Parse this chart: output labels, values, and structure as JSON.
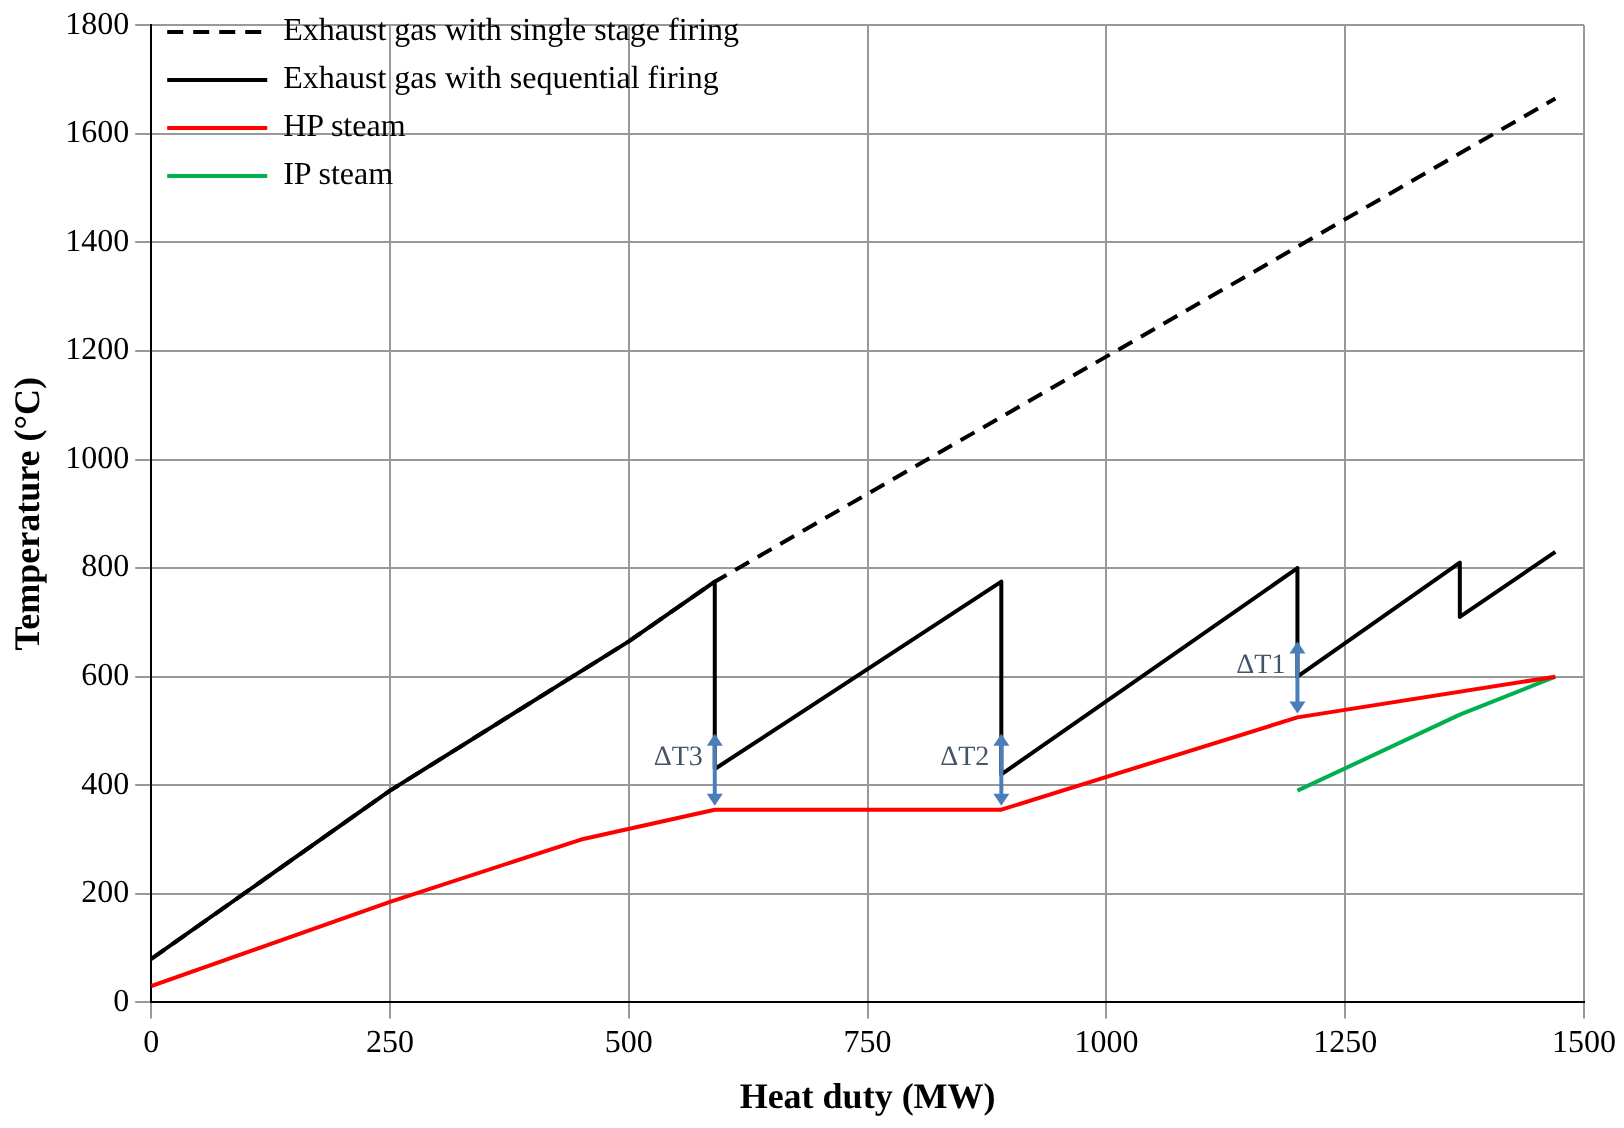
{
  "chart_data": {
    "type": "line",
    "xlabel": "Heat duty (MW)",
    "ylabel": "Temperature (°C)",
    "xlim": [
      0,
      1500
    ],
    "xticks": [
      0,
      250,
      500,
      750,
      1000,
      1250,
      1500
    ],
    "ylim": [
      0,
      1800
    ],
    "yticks": [
      0,
      200,
      400,
      600,
      800,
      1000,
      1200,
      1400,
      1600,
      1800
    ],
    "grid": true,
    "legend": "top left",
    "marker": "none",
    "series": [
      {
        "name": "Exhaust gas with single stage firing",
        "color": "#000000",
        "line_style": "dashed",
        "x": [
          0,
          250,
          500,
          590,
          1470
        ],
        "values": [
          80,
          390,
          665,
          775,
          1665
        ]
      },
      {
        "name": "Exhaust gas with sequential firing",
        "color": "#000000",
        "line_style": "solid",
        "x": [
          0,
          250,
          500,
          590,
          590,
          890,
          890,
          1200,
          1200,
          1370,
          1370,
          1470
        ],
        "values": [
          80,
          390,
          665,
          775,
          430,
          775,
          420,
          800,
          600,
          810,
          710,
          830
        ]
      },
      {
        "name": "HP steam",
        "color": "#ff0000",
        "line_style": "solid",
        "x": [
          0,
          250,
          450,
          590,
          890,
          1200,
          1470
        ],
        "values": [
          30,
          185,
          300,
          355,
          355,
          525,
          600
        ]
      },
      {
        "name": "IP steam",
        "color": "#00b050",
        "line_style": "solid",
        "x": [
          1200,
          1370,
          1470
        ],
        "values": [
          390,
          530,
          600
        ]
      }
    ],
    "annotations": [
      {
        "text": "ΔT3",
        "x": 590,
        "y": 355
      },
      {
        "text": "ΔT2",
        "x": 890,
        "y": 355
      },
      {
        "text": "ΔT1",
        "x": 1200,
        "y": 525
      }
    ]
  }
}
